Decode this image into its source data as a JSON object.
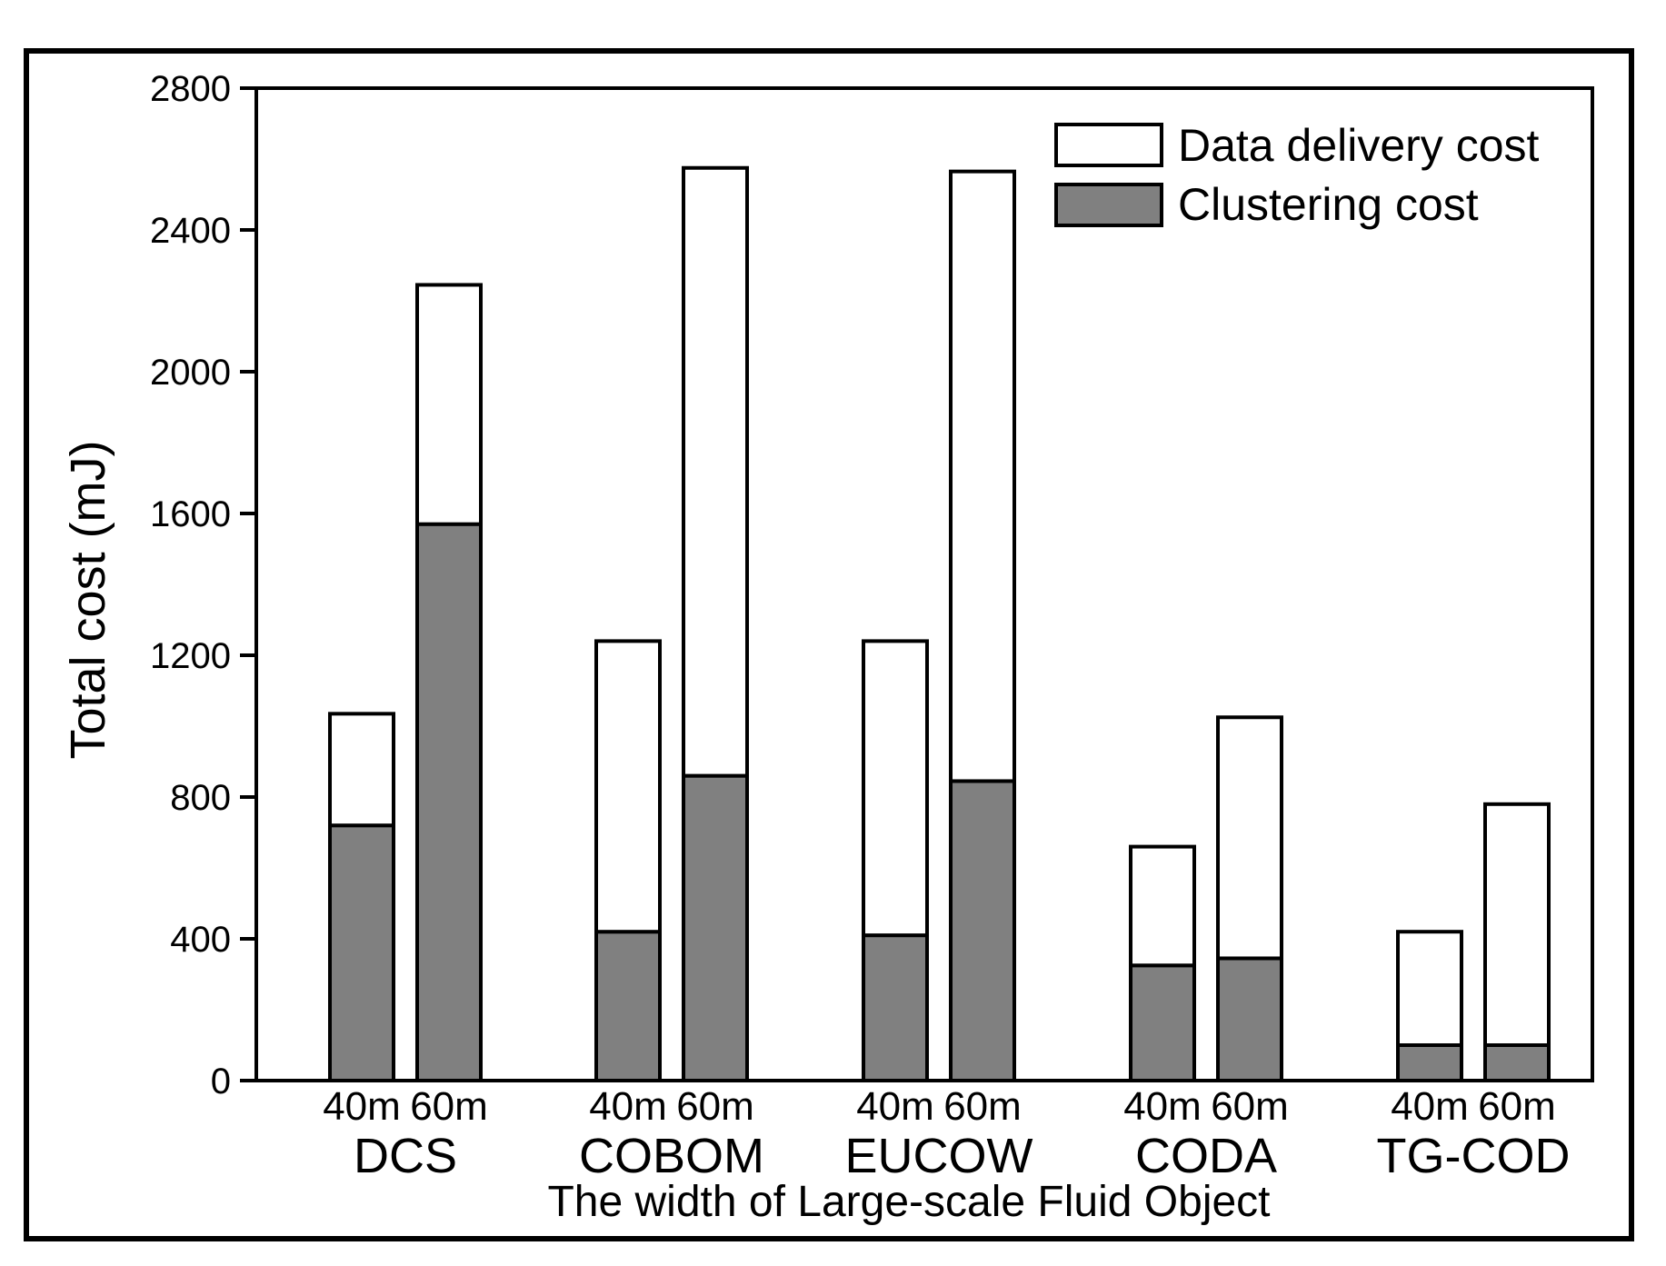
{
  "chart_data": {
    "type": "bar",
    "stacked": true,
    "title": "",
    "xlabel": "The width of Large-scale Fluid Object",
    "ylabel": "Total cost (mJ)",
    "ylim": [
      0,
      2800
    ],
    "yticks": [
      0,
      400,
      800,
      1200,
      1600,
      2000,
      2400,
      2800
    ],
    "groups": [
      "DCS",
      "COBOM",
      "EUCOW",
      "CODA",
      "TG-COD"
    ],
    "subcategories": [
      "40m",
      "60m"
    ],
    "series": [
      {
        "name": "Clustering cost",
        "color": "#808080",
        "values": [
          [
            720,
            1570
          ],
          [
            420,
            860
          ],
          [
            410,
            845
          ],
          [
            325,
            345
          ],
          [
            100,
            100
          ]
        ]
      },
      {
        "name": "Data delivery cost",
        "color": "#ffffff",
        "values": [
          [
            315,
            675
          ],
          [
            820,
            1715
          ],
          [
            830,
            1720
          ],
          [
            335,
            680
          ],
          [
            320,
            680
          ]
        ]
      }
    ],
    "totals": [
      [
        1035,
        2245
      ],
      [
        1240,
        2575
      ],
      [
        1240,
        2565
      ],
      [
        660,
        1025
      ],
      [
        420,
        780
      ]
    ],
    "legend_position": "top-right"
  }
}
